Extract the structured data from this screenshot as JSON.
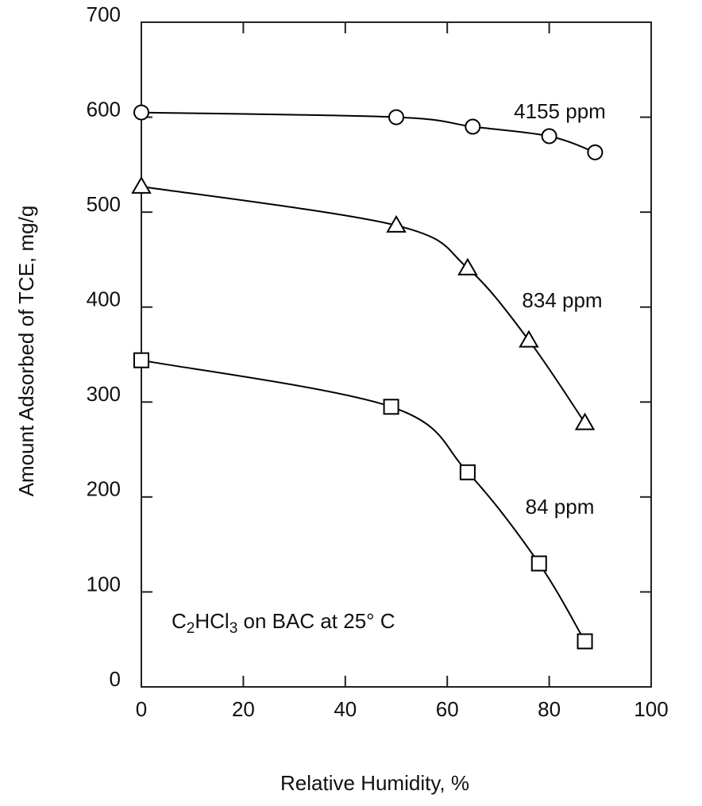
{
  "chart_data": {
    "type": "scatter",
    "x_label": "Relative Humidity, %",
    "y_label": "Amount Adsorbed of TCE, mg/g",
    "annotation": [
      "C",
      "2",
      "HCl",
      "3",
      " on BAC at 25° C"
    ],
    "xlim": [
      0,
      100
    ],
    "xticks": [
      0,
      20,
      40,
      60,
      80,
      100
    ],
    "ylim": [
      0,
      700
    ],
    "yticks": [
      0,
      100,
      200,
      300,
      400,
      500,
      600,
      700
    ],
    "series": [
      {
        "name": "4155 ppm",
        "color": "#000",
        "marker": "circle",
        "x": [
          0,
          50,
          65,
          80,
          89
        ],
        "values": [
          605,
          600,
          590,
          580,
          563
        ]
      },
      {
        "name": "834 ppm",
        "color": "#000",
        "marker": "triangle",
        "x": [
          0,
          50,
          64,
          76,
          87
        ],
        "values": [
          527,
          486,
          441,
          365,
          278
        ]
      },
      {
        "name": "84 ppm",
        "color": "#000",
        "marker": "square",
        "x": [
          0,
          49,
          64,
          78,
          87
        ],
        "values": [
          344,
          295,
          226,
          130,
          48
        ]
      }
    ]
  }
}
